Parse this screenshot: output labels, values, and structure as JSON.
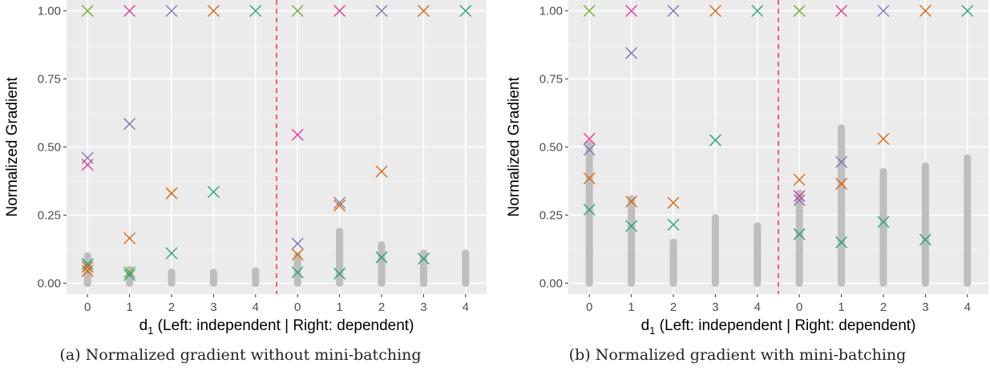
{
  "chart_data": [
    {
      "type": "scatter",
      "caption": "(a) Normalized gradient without mini-batching",
      "ylabel": "Normalized Gradient",
      "xlabel_main": "d",
      "xlabel_sub": "1",
      "xlabel_rest": " (Left: independent | Right: dependent)",
      "categories": [
        "0",
        "1",
        "2",
        "3",
        "4",
        "0",
        "1",
        "2",
        "3",
        "4"
      ],
      "ylim": [
        -0.04,
        1.04
      ],
      "yticks": [
        "0.00",
        "0.25",
        "0.50",
        "0.75",
        "1.00"
      ],
      "ytick_values": [
        0,
        0.25,
        0.5,
        0.75,
        1.0
      ],
      "grid": true,
      "divider_between": [
        4,
        5
      ],
      "gray_ranges": [
        [
          0,
          0.1
        ],
        [
          0,
          0.05
        ],
        [
          0,
          0.04
        ],
        [
          0,
          0.04
        ],
        [
          0,
          0.045
        ],
        [
          0,
          0.1
        ],
        [
          0,
          0.19
        ],
        [
          0,
          0.14
        ],
        [
          0,
          0.11
        ],
        [
          0,
          0.11
        ]
      ],
      "markers": [
        {
          "x": 0,
          "y": 1.0,
          "color": "#66a61e"
        },
        {
          "x": 0,
          "y": 0.46,
          "color": "#7570b3"
        },
        {
          "x": 0,
          "y": 0.435,
          "color": "#e7298a"
        },
        {
          "x": 0,
          "y": 0.07,
          "color": "#1b9e77"
        },
        {
          "x": 0,
          "y": 0.06,
          "color": "#d95f02"
        },
        {
          "x": 0,
          "y": 0.045,
          "color": "#d95f02"
        },
        {
          "x": 1,
          "y": 1.0,
          "color": "#e7298a"
        },
        {
          "x": 1,
          "y": 0.585,
          "color": "#7570b3"
        },
        {
          "x": 1,
          "y": 0.165,
          "color": "#d95f02"
        },
        {
          "x": 1,
          "y": 0.04,
          "color": "#66a61e"
        },
        {
          "x": 1,
          "y": 0.03,
          "color": "#1b9e77"
        },
        {
          "x": 2,
          "y": 1.0,
          "color": "#7570b3"
        },
        {
          "x": 2,
          "y": 0.33,
          "color": "#d95f02"
        },
        {
          "x": 2,
          "y": 0.11,
          "color": "#1b9e77"
        },
        {
          "x": 3,
          "y": 1.0,
          "color": "#d95f02"
        },
        {
          "x": 3,
          "y": 0.335,
          "color": "#1b9e77"
        },
        {
          "x": 4,
          "y": 1.0,
          "color": "#1b9e77"
        },
        {
          "x": 5,
          "y": 1.0,
          "color": "#66a61e"
        },
        {
          "x": 5,
          "y": 0.545,
          "color": "#e7298a"
        },
        {
          "x": 5,
          "y": 0.145,
          "color": "#7570b3"
        },
        {
          "x": 5,
          "y": 0.105,
          "color": "#d95f02"
        },
        {
          "x": 5,
          "y": 0.04,
          "color": "#1b9e77"
        },
        {
          "x": 6,
          "y": 1.0,
          "color": "#e7298a"
        },
        {
          "x": 6,
          "y": 0.295,
          "color": "#7570b3"
        },
        {
          "x": 6,
          "y": 0.285,
          "color": "#d95f02"
        },
        {
          "x": 6,
          "y": 0.035,
          "color": "#1b9e77"
        },
        {
          "x": 7,
          "y": 1.0,
          "color": "#7570b3"
        },
        {
          "x": 7,
          "y": 0.41,
          "color": "#d95f02"
        },
        {
          "x": 7,
          "y": 0.095,
          "color": "#1b9e77"
        },
        {
          "x": 8,
          "y": 1.0,
          "color": "#d95f02"
        },
        {
          "x": 8,
          "y": 0.09,
          "color": "#1b9e77"
        },
        {
          "x": 9,
          "y": 1.0,
          "color": "#1b9e77"
        }
      ]
    },
    {
      "type": "scatter",
      "caption": "(b) Normalized gradient with mini-batching",
      "ylabel": "Normalized Gradient",
      "xlabel_main": "d",
      "xlabel_sub": "1",
      "xlabel_rest": " (Left: independent | Right: dependent)",
      "categories": [
        "0",
        "1",
        "2",
        "3",
        "4",
        "0",
        "1",
        "2",
        "3",
        "4"
      ],
      "ylim": [
        -0.04,
        1.04
      ],
      "yticks": [
        "0.00",
        "0.25",
        "0.50",
        "0.75",
        "1.00"
      ],
      "ytick_values": [
        0,
        0.25,
        0.5,
        0.75,
        1.0
      ],
      "grid": true,
      "divider_between": [
        4,
        5
      ],
      "gray_ranges": [
        [
          0,
          0.51
        ],
        [
          0,
          0.31
        ],
        [
          0,
          0.15
        ],
        [
          0,
          0.24
        ],
        [
          0,
          0.21
        ],
        [
          0,
          0.33
        ],
        [
          0,
          0.57
        ],
        [
          0,
          0.41
        ],
        [
          0,
          0.43
        ],
        [
          0,
          0.46
        ]
      ],
      "markers": [
        {
          "x": 0,
          "y": 1.0,
          "color": "#66a61e"
        },
        {
          "x": 0,
          "y": 0.53,
          "color": "#e7298a"
        },
        {
          "x": 0,
          "y": 0.49,
          "color": "#7570b3"
        },
        {
          "x": 0,
          "y": 0.385,
          "color": "#d95f02"
        },
        {
          "x": 0,
          "y": 0.27,
          "color": "#1b9e77"
        },
        {
          "x": 1,
          "y": 1.0,
          "color": "#e7298a"
        },
        {
          "x": 1,
          "y": 0.845,
          "color": "#7570b3"
        },
        {
          "x": 1,
          "y": 0.3,
          "color": "#d95f02"
        },
        {
          "x": 1,
          "y": 0.21,
          "color": "#1b9e77"
        },
        {
          "x": 2,
          "y": 1.0,
          "color": "#7570b3"
        },
        {
          "x": 2,
          "y": 0.295,
          "color": "#d95f02"
        },
        {
          "x": 2,
          "y": 0.215,
          "color": "#1b9e77"
        },
        {
          "x": 3,
          "y": 1.0,
          "color": "#d95f02"
        },
        {
          "x": 3,
          "y": 0.525,
          "color": "#1b9e77"
        },
        {
          "x": 4,
          "y": 1.0,
          "color": "#1b9e77"
        },
        {
          "x": 5,
          "y": 1.0,
          "color": "#66a61e"
        },
        {
          "x": 5,
          "y": 0.38,
          "color": "#d95f02"
        },
        {
          "x": 5,
          "y": 0.32,
          "color": "#e7298a"
        },
        {
          "x": 5,
          "y": 0.305,
          "color": "#7570b3"
        },
        {
          "x": 5,
          "y": 0.18,
          "color": "#1b9e77"
        },
        {
          "x": 6,
          "y": 1.0,
          "color": "#e7298a"
        },
        {
          "x": 6,
          "y": 0.445,
          "color": "#7570b3"
        },
        {
          "x": 6,
          "y": 0.365,
          "color": "#d95f02"
        },
        {
          "x": 6,
          "y": 0.15,
          "color": "#1b9e77"
        },
        {
          "x": 7,
          "y": 1.0,
          "color": "#7570b3"
        },
        {
          "x": 7,
          "y": 0.53,
          "color": "#d95f02"
        },
        {
          "x": 7,
          "y": 0.225,
          "color": "#1b9e77"
        },
        {
          "x": 8,
          "y": 1.0,
          "color": "#d95f02"
        },
        {
          "x": 8,
          "y": 0.16,
          "color": "#1b9e77"
        },
        {
          "x": 9,
          "y": 1.0,
          "color": "#1b9e77"
        }
      ]
    }
  ]
}
